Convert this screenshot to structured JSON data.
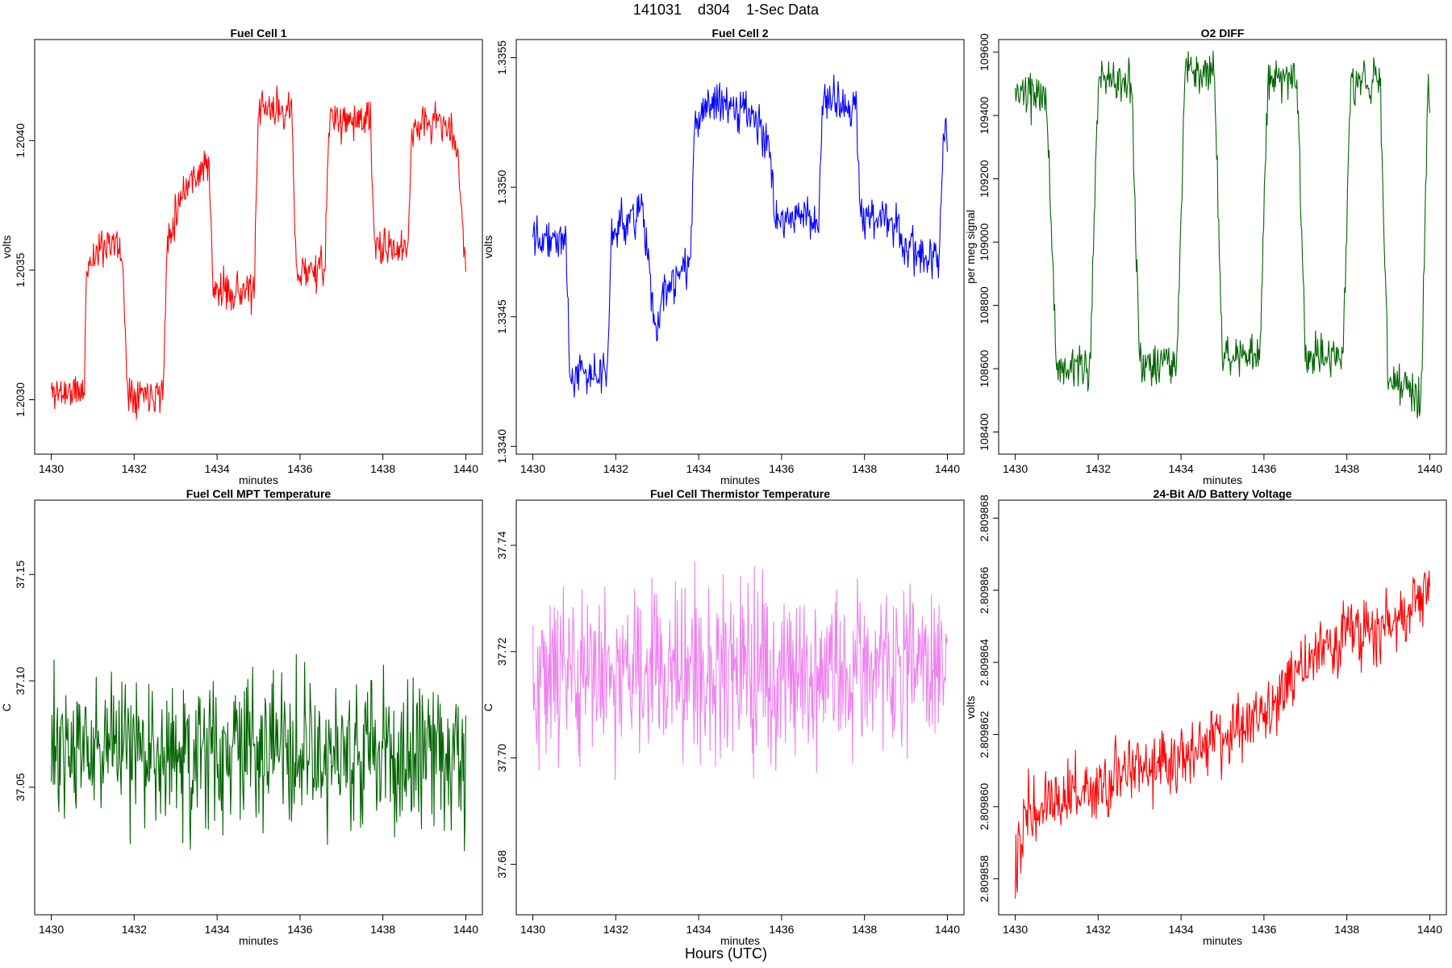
{
  "figure": {
    "title": "141031    d304    1-Sec Data",
    "xlabel": "Hours (UTC)"
  },
  "chart_data": [
    {
      "type": "line",
      "title": "Fuel Cell 1",
      "xlabel": "minutes",
      "ylabel": "volts",
      "color": "#ff0000",
      "xlim": [
        1429.6,
        1440.4
      ],
      "ylim": [
        1.20279,
        1.20439
      ],
      "xticks": [
        1430,
        1432,
        1434,
        1436,
        1438,
        1440
      ],
      "xtick_labels": [
        "1430",
        "1432",
        "1434",
        "1436",
        "1438",
        "1440"
      ],
      "yticks": [
        1.203,
        1.2035,
        1.204
      ],
      "ytick_labels": [
        "1.2030",
        "1.2035",
        "1.2040"
      ],
      "shape": {
        "x": [
          1430.0,
          1430.8,
          1430.85,
          1431.4,
          1431.7,
          1431.85,
          1432.7,
          1432.8,
          1433.2,
          1433.8,
          1433.9,
          1434.9,
          1435.0,
          1435.8,
          1435.9,
          1436.6,
          1436.7,
          1437.7,
          1437.8,
          1438.6,
          1438.7,
          1439.4,
          1439.8,
          1440.0
        ],
        "y": [
          1.20303,
          1.20303,
          1.20352,
          1.20362,
          1.20357,
          1.20303,
          1.20303,
          1.20362,
          1.20382,
          1.20392,
          1.20342,
          1.20342,
          1.20412,
          1.20412,
          1.2035,
          1.2035,
          1.20408,
          1.20408,
          1.20358,
          1.20358,
          1.20405,
          1.20408,
          1.20398,
          1.20348
        ]
      },
      "noise": 0.00011,
      "n_points": 600,
      "seed": 11
    },
    {
      "type": "line",
      "title": "Fuel Cell 2",
      "xlabel": "minutes",
      "ylabel": "volts",
      "color": "#0000ff",
      "xlim": [
        1429.6,
        1440.4
      ],
      "ylim": [
        1.33397,
        1.33557
      ],
      "xticks": [
        1430,
        1432,
        1434,
        1436,
        1438,
        1440
      ],
      "xtick_labels": [
        "1430",
        "1432",
        "1434",
        "1436",
        "1438",
        "1440"
      ],
      "yticks": [
        1.334,
        1.3345,
        1.335,
        1.3355
      ],
      "ytick_labels": [
        "1.3340",
        "1.3345",
        "1.3350",
        "1.3355"
      ],
      "shape": {
        "x": [
          1430.0,
          1430.8,
          1430.9,
          1431.8,
          1431.9,
          1432.5,
          1432.6,
          1433.0,
          1433.1,
          1433.8,
          1433.9,
          1434.8,
          1435.0,
          1435.7,
          1435.85,
          1436.9,
          1437.0,
          1437.8,
          1437.9,
          1438.8,
          1438.9,
          1439.8,
          1439.9,
          1440.0
        ],
        "y": [
          1.33484,
          1.33478,
          1.33428,
          1.33428,
          1.33482,
          1.3349,
          1.33496,
          1.3344,
          1.33458,
          1.3347,
          1.33528,
          1.33532,
          1.3353,
          1.3352,
          1.33488,
          1.33488,
          1.33535,
          1.3353,
          1.3349,
          1.33485,
          1.33478,
          1.3347,
          1.3352,
          1.33518
        ]
      },
      "noise": 0.00012,
      "n_points": 600,
      "seed": 22
    },
    {
      "type": "line",
      "title": "O2 DIFF",
      "xlabel": "minutes",
      "ylabel": "per meg signal",
      "color": "#006400",
      "xlim": [
        1429.6,
        1440.4
      ],
      "ylim": [
        108330,
        109640
      ],
      "xticks": [
        1430,
        1432,
        1434,
        1436,
        1438,
        1440
      ],
      "xtick_labels": [
        "1430",
        "1432",
        "1434",
        "1436",
        "1438",
        "1440"
      ],
      "yticks": [
        108400,
        108600,
        108800,
        109000,
        109200,
        109400,
        109600
      ],
      "ytick_labels": [
        "108400",
        "108600",
        "108800",
        "109000",
        "109200",
        "109400",
        "109600"
      ],
      "shape": {
        "x": [
          1430.0,
          1430.75,
          1431.0,
          1431.8,
          1432.0,
          1432.8,
          1433.0,
          1433.9,
          1434.1,
          1434.8,
          1435.0,
          1435.9,
          1436.1,
          1436.8,
          1437.0,
          1437.9,
          1438.1,
          1438.8,
          1439.0,
          1439.8,
          1439.95,
          1440.0
        ],
        "y": [
          109460,
          109460,
          108600,
          108600,
          109500,
          109500,
          108620,
          108620,
          109540,
          109540,
          108640,
          108640,
          109520,
          109520,
          108640,
          108640,
          109510,
          109510,
          108560,
          108520,
          109500,
          109480
        ]
      },
      "noise": 100,
      "n_points": 600,
      "seed": 33
    },
    {
      "type": "line",
      "title": "Fuel Cell MPT Temperature",
      "xlabel": "minutes",
      "ylabel": "C",
      "color": "#006400",
      "xlim": [
        1429.6,
        1440.4
      ],
      "ylim": [
        36.99,
        37.185
      ],
      "xticks": [
        1430,
        1432,
        1434,
        1436,
        1438,
        1440
      ],
      "xtick_labels": [
        "1430",
        "1432",
        "1434",
        "1436",
        "1438",
        "1440"
      ],
      "yticks": [
        37.05,
        37.1,
        37.15
      ],
      "ytick_labels": [
        "37.05",
        "37.10",
        "37.15"
      ],
      "shape": {
        "x": [
          1430.0,
          1440.0
        ],
        "y": [
          37.068,
          37.066
        ]
      },
      "noise": 0.055,
      "n_points": 600,
      "seed": 44
    },
    {
      "type": "line",
      "title": "Fuel Cell Thermistor Temperature",
      "xlabel": "minutes",
      "ylabel": "C",
      "color": "#ee82ee",
      "xlim": [
        1429.6,
        1440.4
      ],
      "ylim": [
        37.6705,
        37.7485
      ],
      "xticks": [
        1430,
        1432,
        1434,
        1436,
        1438,
        1440
      ],
      "xtick_labels": [
        "1430",
        "1432",
        "1434",
        "1436",
        "1438",
        "1440"
      ],
      "yticks": [
        37.68,
        37.7,
        37.72,
        37.74
      ],
      "ytick_labels": [
        "37.68",
        "37.70",
        "37.72",
        "37.74"
      ],
      "shape": {
        "x": [
          1430.0,
          1440.0
        ],
        "y": [
          37.7165,
          37.716
        ]
      },
      "noise": 0.024,
      "n_points": 600,
      "seed": 55
    },
    {
      "type": "line",
      "title": "24-Bit A/D Battery Voltage",
      "xlabel": "minutes",
      "ylabel": "volts",
      "color": "#ff0000",
      "xlim": [
        1429.6,
        1440.4
      ],
      "ylim": [
        2.809857,
        2.8098685
      ],
      "xticks": [
        1430,
        1432,
        1434,
        1436,
        1438,
        1440
      ],
      "xtick_labels": [
        "1430",
        "1432",
        "1434",
        "1436",
        "1438",
        "1440"
      ],
      "yticks": [
        2.809858,
        2.80986,
        2.809862,
        2.809864,
        2.809866,
        2.809868
      ],
      "ytick_labels": [
        "2.809858",
        "2.809860",
        "2.809862",
        "2.809864",
        "2.809866",
        "2.809868"
      ],
      "shape": {
        "x": [
          1430.0,
          1430.3,
          1432.0,
          1434.0,
          1436.0,
          1437.0,
          1438.0,
          1439.0,
          1440.0
        ],
        "y": [
          2.8098585,
          2.80986,
          2.8098606,
          2.8098614,
          2.8098625,
          2.809864,
          2.8098648,
          2.809865,
          2.809866
        ]
      },
      "noise": 1.4e-06,
      "n_points": 600,
      "seed": 66
    }
  ]
}
